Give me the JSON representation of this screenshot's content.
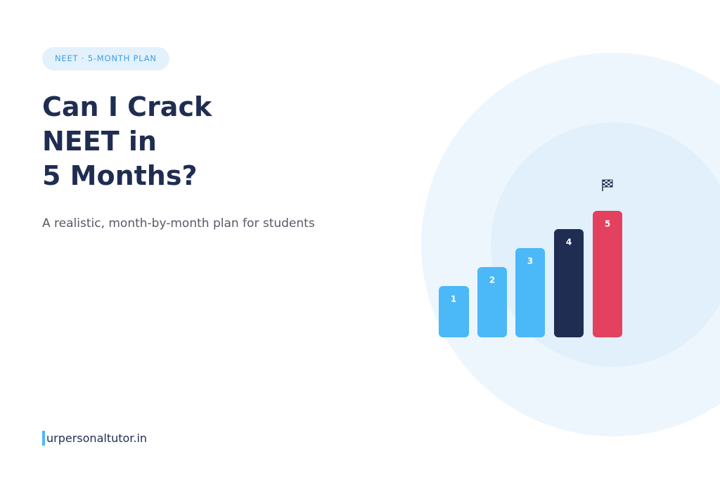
{
  "badge": "NEET · 5-MONTH PLAN",
  "title": [
    "Can I Crack",
    "NEET in",
    "5 Months?"
  ],
  "subtitle": "A realistic, month-by-month plan for students",
  "steps": [
    "1",
    "2",
    "3",
    "4",
    "5"
  ],
  "footer": "urpersonaltutor.in"
}
